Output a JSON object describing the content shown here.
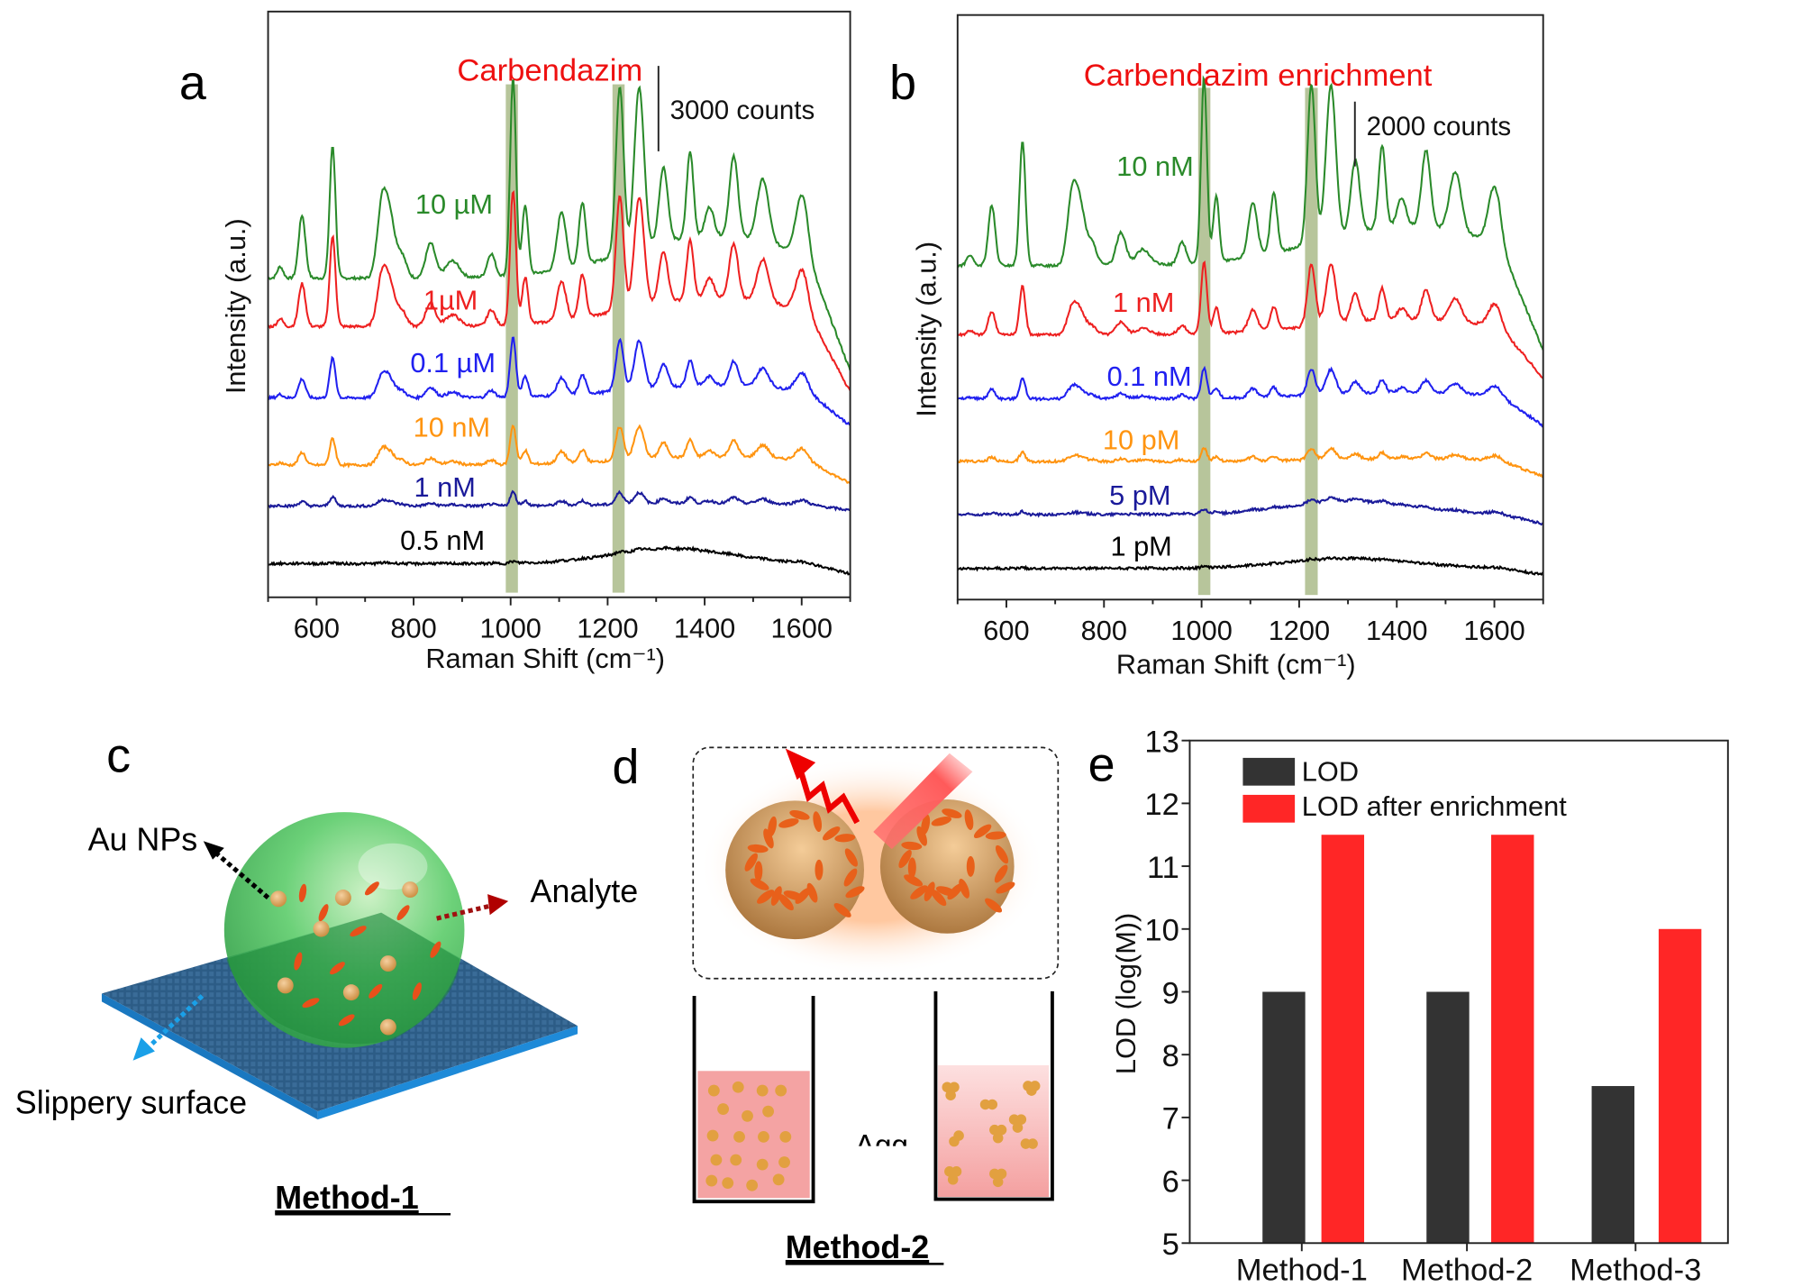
{
  "chart_data": [
    {
      "type": "line",
      "panel_letter": "a",
      "title": "Carbendazim",
      "scale_bar": "3000 counts",
      "xlabel": "Raman Shift (cm⁻¹)",
      "ylabel": "Intensity (a.u.)",
      "xlim": [
        500,
        1700
      ],
      "ylim": [
        0,
        27900
      ],
      "xticks": [
        600,
        800,
        1000,
        1200,
        1400,
        1600
      ],
      "highlight_bands": [
        [
          990,
          1015
        ],
        [
          1210,
          1235
        ]
      ],
      "highlight_color": "#9fb27a",
      "series": [
        {
          "name": "10 µM",
          "color": "#2a8a2a",
          "baseline": 15200,
          "scale": 1.0,
          "tail": 5000
        },
        {
          "name": "1µM",
          "color": "#ee2020",
          "baseline": 12900,
          "scale": 0.68,
          "tail": 3500
        },
        {
          "name": "0.1 µM",
          "color": "#2020f0",
          "baseline": 9500,
          "scale": 0.3,
          "tail": 1500
        },
        {
          "name": "10 nM",
          "color": "#ff9410",
          "baseline": 6300,
          "scale": 0.2,
          "tail": 1000
        },
        {
          "name": "1 nM",
          "color": "#1a1a9a",
          "baseline": 4350,
          "scale": 0.07,
          "tail": 250
        },
        {
          "name": "0.5 nM",
          "color": "#000000",
          "baseline": 1600,
          "scale": 0.01,
          "tail": 500,
          "hump": [
            1330,
            700,
            120
          ]
        }
      ]
    },
    {
      "type": "line",
      "panel_letter": "b",
      "title": "Carbendazim enrichment",
      "scale_bar": "2000 counts",
      "xlabel": "Raman Shift (cm⁻¹)",
      "ylabel": "Intensity (a.u.)",
      "xlim": [
        500,
        1700
      ],
      "ylim": [
        0,
        18200
      ],
      "xticks": [
        600,
        800,
        1000,
        1200,
        1400,
        1600
      ],
      "highlight_bands": [
        [
          993,
          1018
        ],
        [
          1212,
          1238
        ]
      ],
      "highlight_color": "#9fb27a",
      "series": [
        {
          "name": "10 nM",
          "color": "#2a8a2a",
          "baseline": 10400,
          "scale": 0.62,
          "tail": 3000
        },
        {
          "name": "1 nM",
          "color": "#ee2020",
          "baseline": 8250,
          "scale": 0.24,
          "tail": 1500
        },
        {
          "name": "0.1 nM",
          "color": "#2020f0",
          "baseline": 6250,
          "scale": 0.1,
          "tail": 900
        },
        {
          "name": "10 pM",
          "color": "#ff9410",
          "baseline": 4300,
          "scale": 0.045,
          "tail": 500
        },
        {
          "name": "5 pM",
          "color": "#1a1a9a",
          "baseline": 2650,
          "scale": 0.015,
          "tail": 300,
          "hump": [
            1300,
            400,
            120
          ]
        },
        {
          "name": "1 pM",
          "color": "#000000",
          "baseline": 970,
          "scale": 0.004,
          "tail": 200,
          "hump": [
            1300,
            300,
            130
          ]
        }
      ]
    },
    {
      "type": "bar",
      "panel_letter": "e",
      "categories": [
        "Method-1",
        "Method-2",
        "Method-3"
      ],
      "series": [
        {
          "name": "LOD",
          "color": "#333333",
          "values": [
            9,
            9,
            7.5
          ]
        },
        {
          "name": "LOD after enrichment",
          "color": "#ff2626",
          "values": [
            11.5,
            11.5,
            10
          ]
        }
      ],
      "ylabel": "LOD (log(M))",
      "ylim": [
        5,
        13
      ],
      "yticks": [
        5,
        6,
        7,
        8,
        9,
        10,
        11,
        12,
        13
      ],
      "legend": "top-left"
    }
  ],
  "peak_profile_counts": [
    [
      525,
      550,
      6
    ],
    [
      570,
      3000,
      7
    ],
    [
      633,
      6300,
      6
    ],
    [
      735,
      3500,
      10
    ],
    [
      752,
      2500,
      10
    ],
    [
      775,
      1100,
      10
    ],
    [
      835,
      1650,
      10
    ],
    [
      880,
      800,
      14
    ],
    [
      960,
      1100,
      8
    ],
    [
      1005,
      9350,
      6
    ],
    [
      1030,
      3300,
      6
    ],
    [
      1105,
      2750,
      9
    ],
    [
      1148,
      3000,
      7
    ],
    [
      1225,
      8000,
      8
    ],
    [
      1265,
      7700,
      10
    ],
    [
      1315,
      3600,
      9
    ],
    [
      1370,
      4100,
      7
    ],
    [
      1410,
      1400,
      9
    ],
    [
      1460,
      3850,
      9
    ],
    [
      1520,
      3000,
      12
    ],
    [
      1600,
      2750,
      12
    ]
  ],
  "panel_c": {
    "letter": "c",
    "au_nps": "Au NPs",
    "analyte": "Analyte",
    "surface": "Slippery surface",
    "method": "Method-1"
  },
  "panel_d": {
    "letter": "d",
    "beaker_text": "Agg",
    "method": "Method-2"
  },
  "panel_e": {
    "letter": "e"
  }
}
